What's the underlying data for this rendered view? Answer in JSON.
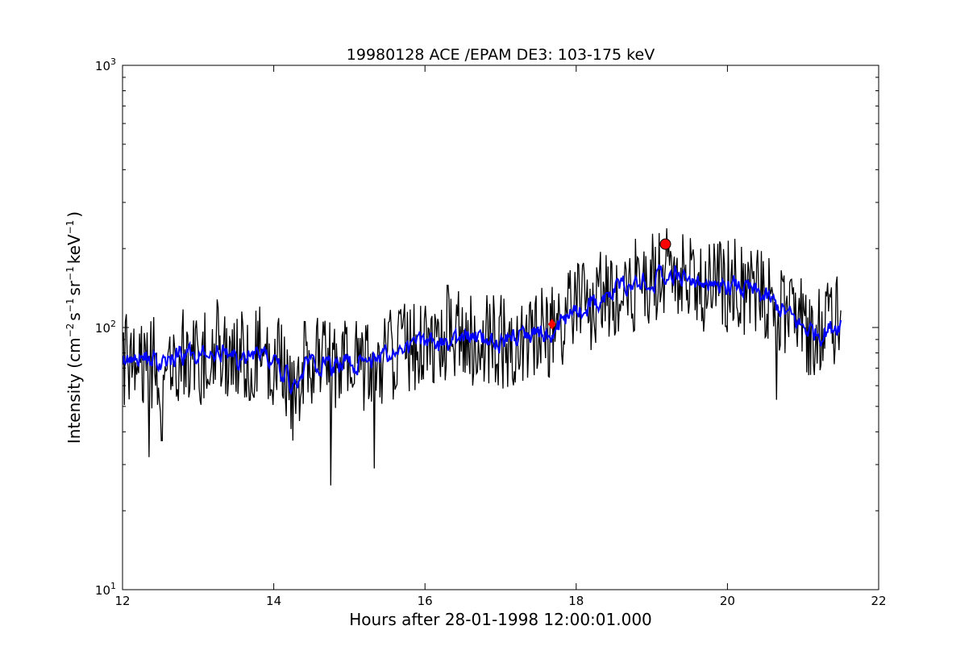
{
  "chart_data": {
    "type": "line",
    "title": "19980128 ACE /EPAM DE3: 103-175 keV",
    "xlabel": "Hours after 28-01-1998 12:00:01.000",
    "ylabel": {
      "prefix": "Intensity (cm",
      "exp1": "−2",
      "mid1": "s",
      "exp2": "−1",
      "mid2": "sr",
      "exp3": "−1",
      "mid3": "keV",
      "exp4": "−1",
      "suffix": ")"
    },
    "xlim": [
      12,
      22
    ],
    "ylim": [
      10,
      1000
    ],
    "yscale": "log",
    "grid": false,
    "xticks": [
      12,
      14,
      16,
      18,
      20,
      22
    ],
    "xtick_labels": [
      "12",
      "14",
      "16",
      "18",
      "20",
      "22"
    ],
    "yticks": [
      10,
      100,
      1000
    ],
    "ytick_labels": [
      {
        "base": "10",
        "exp": "1"
      },
      {
        "base": "10",
        "exp": "2"
      },
      {
        "base": "10",
        "exp": "3"
      }
    ],
    "series": [
      {
        "color": "#000000",
        "style": "raw",
        "x": [
          12.0,
          12.25,
          12.5,
          12.75,
          13.0,
          13.25,
          13.5,
          13.75,
          14.0,
          14.25,
          14.5,
          14.75,
          15.0,
          15.25,
          15.5,
          15.75,
          16.0,
          16.25,
          16.5,
          16.75,
          17.0,
          17.25,
          17.5,
          17.75,
          18.0,
          18.25,
          18.5,
          18.75,
          19.0,
          19.25,
          19.5,
          19.75,
          20.0,
          20.25,
          20.5,
          20.75,
          21.0,
          21.25,
          21.5
        ],
        "values": [
          75,
          78,
          72,
          80,
          76,
          82,
          75,
          80,
          76,
          60,
          78,
          70,
          75,
          72,
          80,
          82,
          88,
          85,
          92,
          90,
          88,
          92,
          95,
          100,
          115,
          125,
          140,
          145,
          155,
          165,
          150,
          145,
          145,
          140,
          130,
          115,
          100,
          95,
          105
        ],
        "spread": 0.42,
        "dips": [
          [
            12.35,
            32
          ],
          [
            12.52,
            37
          ],
          [
            14.25,
            37
          ],
          [
            14.75,
            25
          ],
          [
            15.33,
            29
          ],
          [
            20.65,
            53
          ]
        ],
        "peaks": [
          [
            13.25,
            128
          ],
          [
            16.3,
            145
          ],
          [
            18.78,
            218
          ],
          [
            19.65,
            200
          ],
          [
            20.1,
            218
          ]
        ]
      },
      {
        "color": "#0000ff",
        "style": "smoothed",
        "x": [
          12.0,
          12.25,
          12.5,
          12.75,
          13.0,
          13.25,
          13.5,
          13.75,
          14.0,
          14.25,
          14.5,
          14.75,
          15.0,
          15.25,
          15.5,
          15.75,
          16.0,
          16.25,
          16.5,
          16.75,
          17.0,
          17.25,
          17.5,
          17.75,
          18.0,
          18.25,
          18.5,
          18.75,
          19.0,
          19.25,
          19.5,
          19.75,
          20.0,
          20.25,
          20.5,
          20.75,
          21.0,
          21.25,
          21.5
        ],
        "values": [
          75,
          78,
          72,
          80,
          76,
          82,
          75,
          80,
          76,
          60,
          78,
          70,
          75,
          72,
          80,
          82,
          88,
          85,
          92,
          90,
          88,
          92,
          95,
          100,
          115,
          125,
          140,
          145,
          155,
          165,
          150,
          145,
          145,
          140,
          130,
          115,
          100,
          95,
          105
        ],
        "spread": 0.16
      }
    ],
    "markers": [
      {
        "shape": "circle",
        "x": 19.18,
        "y": 208,
        "color": "#ff0000"
      },
      {
        "shape": "diamond",
        "x": 17.68,
        "y": 103,
        "color": "#ff0000"
      }
    ]
  }
}
